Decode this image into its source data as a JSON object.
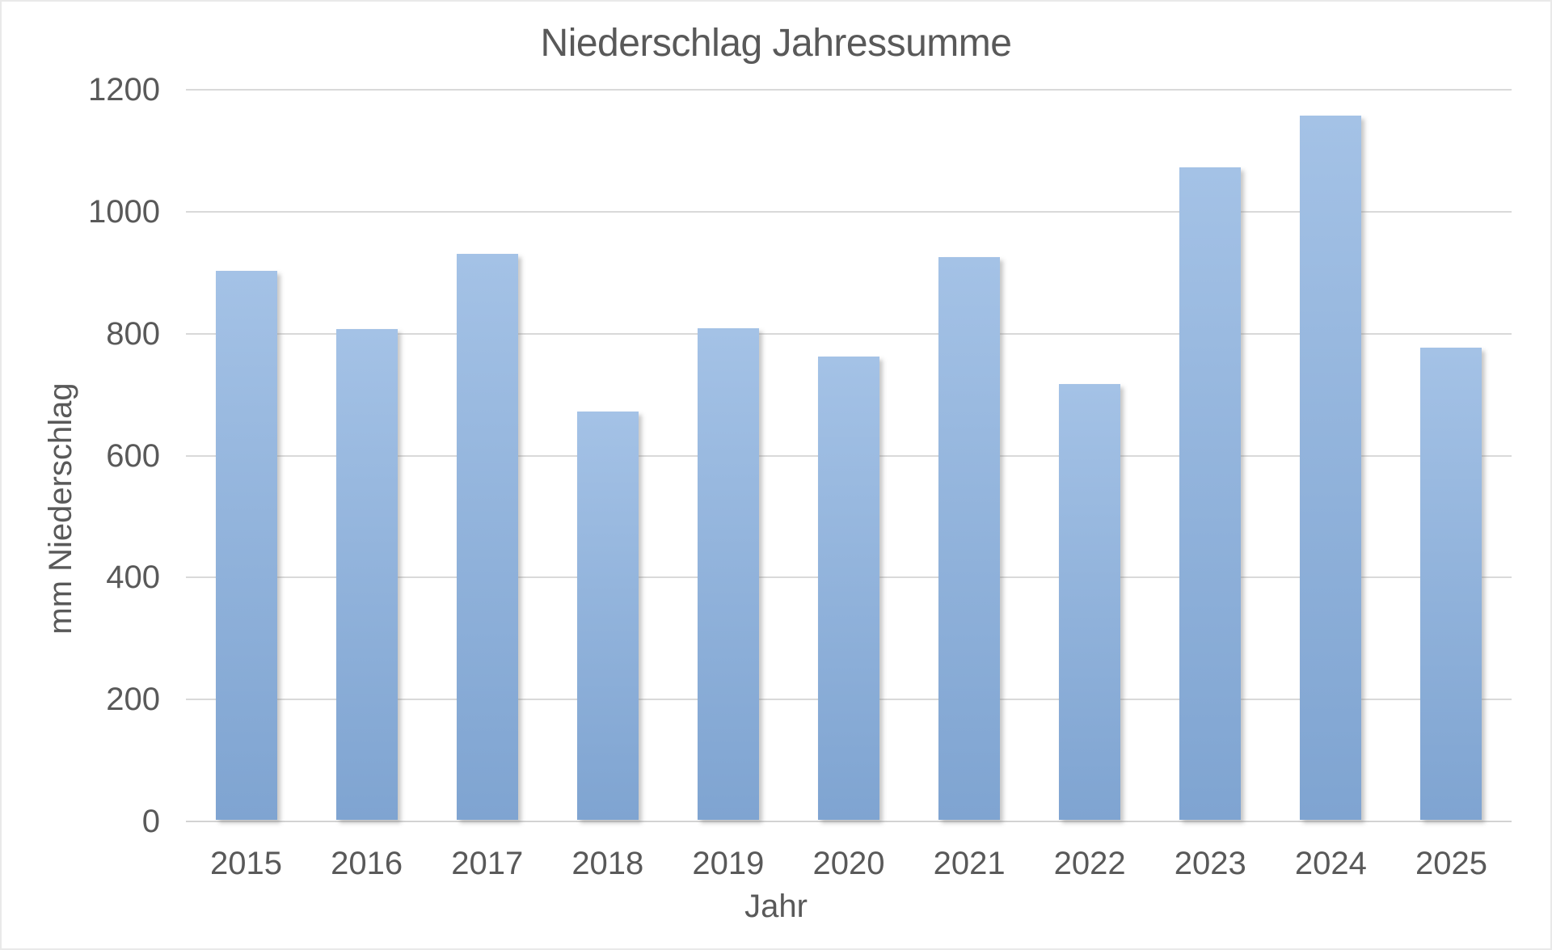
{
  "chart_data": {
    "type": "bar",
    "title": "Niederschlag Jahressumme",
    "xlabel": "Jahr",
    "ylabel": "mm Niederschlag",
    "categories": [
      "2015",
      "2016",
      "2017",
      "2018",
      "2019",
      "2020",
      "2021",
      "2022",
      "2023",
      "2024",
      "2025"
    ],
    "values": [
      900,
      805,
      928,
      670,
      806,
      760,
      923,
      715,
      1070,
      1155,
      774
    ],
    "ylim": [
      0,
      1200
    ],
    "yticks": [
      0,
      200,
      400,
      600,
      800,
      1000,
      1200
    ],
    "grid": true,
    "legend": false,
    "colors": {
      "bar_gradient_top": "#a4c2e6",
      "bar_gradient_bottom": "#7fa4d1",
      "gridline": "#d9d9d9",
      "text": "#595959",
      "background": "#ffffff"
    }
  }
}
